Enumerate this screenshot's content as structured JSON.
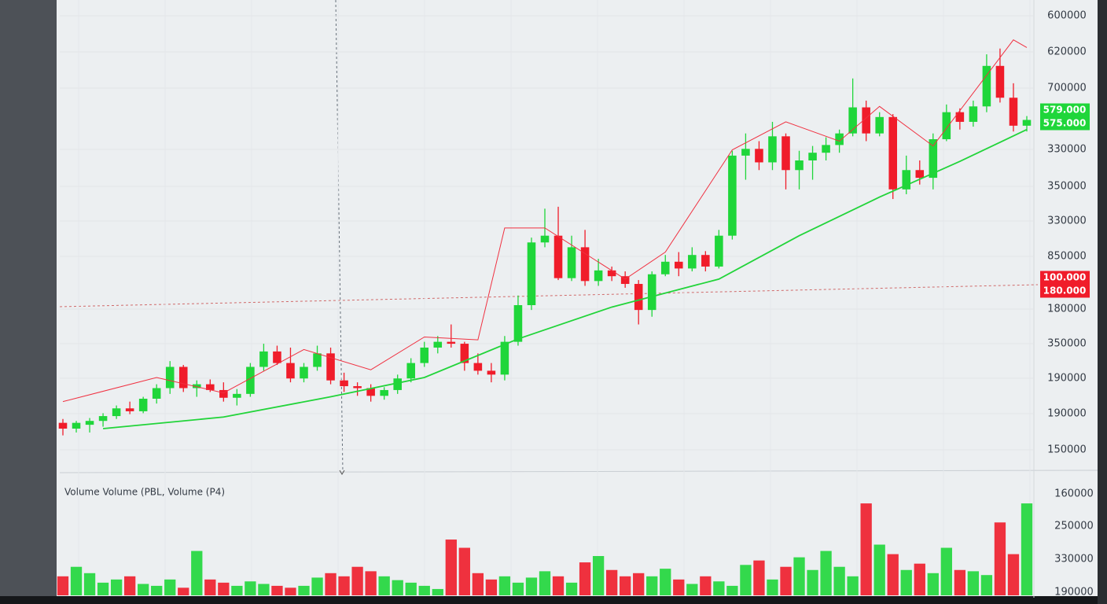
{
  "chart_data": {
    "type": "candlestick",
    "ylim": [
      150000,
      600000
    ],
    "vlim": [
      0,
      160000
    ],
    "up_color": "#1fd63a",
    "down_color": "#f01c2a",
    "open": [
      178000,
      172000,
      176000,
      180000,
      185000,
      193000,
      190000,
      203000,
      214000,
      236000,
      214000,
      218000,
      212000,
      204000,
      208000,
      236000,
      252000,
      240000,
      224000,
      236000,
      250000,
      222000,
      216000,
      214000,
      206000,
      212000,
      224000,
      240000,
      256000,
      262000,
      260000,
      240000,
      232000,
      228000,
      262000,
      300000,
      365000,
      372000,
      328000,
      360000,
      325000,
      336000,
      330000,
      322000,
      295000,
      332000,
      345000,
      338000,
      352000,
      340000,
      372000,
      455000,
      462000,
      448000,
      475000,
      440000,
      450000,
      458000,
      466000,
      478000,
      505000,
      478000,
      495000,
      420000,
      440000,
      432000,
      472000,
      500000,
      490000,
      506000,
      548000,
      515000,
      486000
    ],
    "high": [
      182000,
      180000,
      183000,
      188000,
      196000,
      200000,
      205000,
      218000,
      242000,
      238000,
      222000,
      223000,
      220000,
      213000,
      240000,
      260000,
      258000,
      256000,
      240000,
      258000,
      256000,
      230000,
      220000,
      218000,
      215000,
      228000,
      245000,
      262000,
      268000,
      280000,
      262000,
      250000,
      240000,
      268000,
      310000,
      370000,
      400000,
      402000,
      372000,
      378000,
      348000,
      340000,
      335000,
      326000,
      335000,
      352000,
      355000,
      360000,
      356000,
      378000,
      460000,
      478000,
      470000,
      490000,
      478000,
      460000,
      465000,
      474000,
      482000,
      535000,
      512000,
      500000,
      498000,
      455000,
      450000,
      478000,
      508000,
      504000,
      512000,
      560000,
      566000,
      530000,
      496000
    ],
    "low": [
      165000,
      168000,
      168000,
      174000,
      182000,
      187000,
      188000,
      198000,
      208000,
      210000,
      205000,
      210000,
      200000,
      196000,
      205000,
      232000,
      238000,
      220000,
      220000,
      232000,
      218000,
      210000,
      206000,
      200000,
      202000,
      208000,
      220000,
      236000,
      250000,
      256000,
      232000,
      228000,
      220000,
      222000,
      258000,
      295000,
      360000,
      326000,
      325000,
      320000,
      320000,
      325000,
      318000,
      280000,
      288000,
      330000,
      330000,
      335000,
      335000,
      338000,
      368000,
      430000,
      440000,
      440000,
      420000,
      420000,
      430000,
      450000,
      458000,
      475000,
      470000,
      475000,
      410000,
      415000,
      425000,
      420000,
      470000,
      482000,
      485000,
      500000,
      510000,
      480000,
      480000
    ],
    "close": [
      172000,
      178000,
      180000,
      185000,
      193000,
      190000,
      203000,
      214000,
      236000,
      214000,
      218000,
      212000,
      204000,
      208000,
      236000,
      252000,
      240000,
      224000,
      236000,
      250000,
      222000,
      216000,
      214000,
      206000,
      212000,
      224000,
      240000,
      256000,
      262000,
      260000,
      240000,
      232000,
      228000,
      262000,
      300000,
      365000,
      372000,
      328000,
      360000,
      325000,
      336000,
      330000,
      322000,
      295000,
      332000,
      345000,
      338000,
      352000,
      340000,
      372000,
      455000,
      462000,
      448000,
      475000,
      440000,
      450000,
      458000,
      466000,
      478000,
      505000,
      478000,
      495000,
      420000,
      440000,
      432000,
      472000,
      500000,
      490000,
      506000,
      548000,
      515000,
      486000,
      492000
    ],
    "volume": [
      30000,
      45000,
      35000,
      20000,
      25000,
      30000,
      18000,
      15000,
      25000,
      12000,
      70000,
      25000,
      20000,
      15000,
      22000,
      18000,
      15000,
      12000,
      15000,
      28000,
      35000,
      30000,
      45000,
      38000,
      30000,
      24000,
      20000,
      15000,
      10000,
      88000,
      75000,
      35000,
      25000,
      30000,
      20000,
      28000,
      38000,
      30000,
      20000,
      52000,
      62000,
      40000,
      30000,
      35000,
      30000,
      42000,
      25000,
      18000,
      30000,
      22000,
      15000,
      48000,
      55000,
      25000,
      45000,
      60000,
      40000,
      70000,
      45000,
      30000,
      145000,
      80000,
      65000,
      40000,
      50000,
      35000,
      75000,
      40000,
      38000,
      32000,
      115000,
      65000,
      145000
    ],
    "lines": [
      {
        "color": "#f03040",
        "x": [
          0,
          7,
          12,
          18,
          23,
          27,
          31,
          33,
          36,
          42,
          45,
          50,
          54,
          58,
          61,
          65,
          71,
          72
        ],
        "values": [
          200000,
          225000,
          209000,
          254000,
          233000,
          267000,
          264000,
          380000,
          380000,
          327000,
          355000,
          461000,
          490000,
          470000,
          506000,
          465000,
          575000,
          567000
        ]
      },
      {
        "color": "#22d43a",
        "x": [
          3,
          12,
          20,
          27,
          34,
          41,
          49,
          55,
          61,
          67,
          72
        ],
        "values": [
          172000,
          184000,
          205000,
          225000,
          265000,
          298000,
          327000,
          372000,
          412000,
          449000,
          482000
        ]
      }
    ],
    "price_axis_labels": [
      "600000",
      "620000",
      "700000",
      "330000",
      "350000",
      "330000",
      "850000",
      "180000",
      "350000",
      "190000",
      "190000",
      "150000"
    ],
    "price_badges": [
      {
        "label": "579.000",
        "color": "#1fd63a"
      },
      {
        "label": "575.000",
        "color": "#1fd63a"
      },
      {
        "label": "100.000",
        "color": "#f01c2a"
      },
      {
        "label": "180.000",
        "color": "#f01c2a"
      }
    ],
    "volume_title": "Volume Volume (PBL, Volume (P4)",
    "volume_axis_labels": [
      "160000",
      "250000",
      "330000",
      "190000"
    ]
  }
}
